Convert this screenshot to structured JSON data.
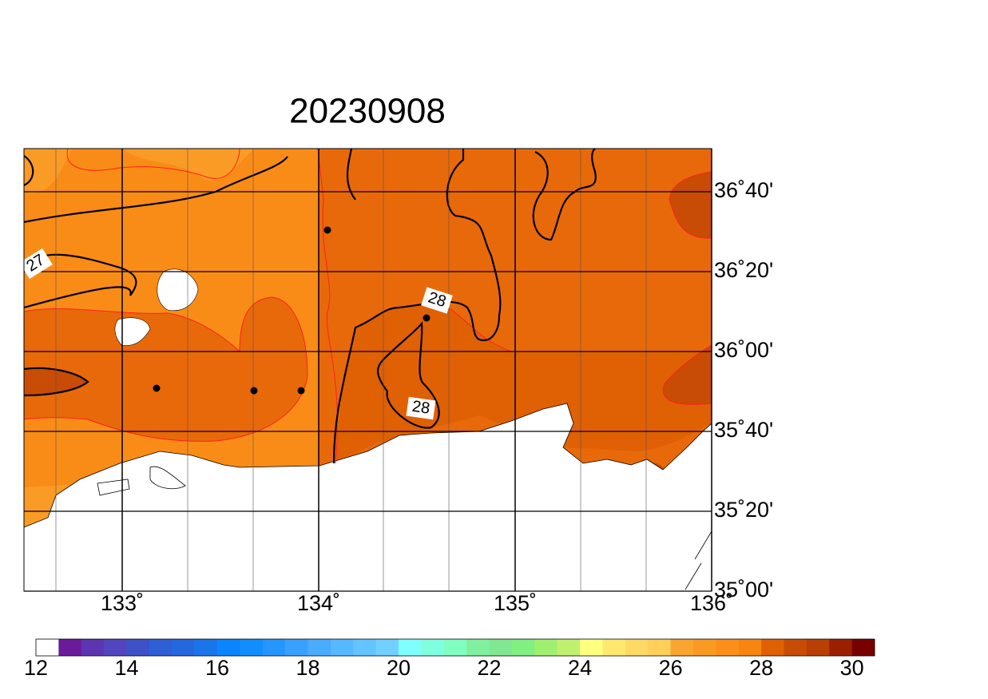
{
  "map": {
    "title": "20230908",
    "lon_range": [
      132.5,
      136
    ],
    "lat_range": [
      35,
      36.8467
    ],
    "lon_ticks": [
      {
        "value": 133,
        "label": "133˚"
      },
      {
        "value": 134,
        "label": "134˚"
      },
      {
        "value": 135,
        "label": "135˚"
      },
      {
        "value": 136,
        "label": "136˚"
      }
    ],
    "lat_ticks": [
      {
        "value": 36.6667,
        "label": "36˚40'"
      },
      {
        "value": 36.3333,
        "label": "36˚20'"
      },
      {
        "value": 36,
        "label": "36˚00'"
      },
      {
        "value": 35.6667,
        "label": "35˚40'"
      },
      {
        "value": 35.3333,
        "label": "35˚20'"
      },
      {
        "value": 35,
        "label": "35˚00'"
      }
    ],
    "contour_labels": [
      "27",
      "28",
      "28"
    ],
    "colorbar": {
      "range": [
        12,
        30.5
      ],
      "ticks": [
        12,
        14,
        16,
        18,
        20,
        22,
        24,
        26,
        28,
        30
      ],
      "colors": [
        "#ffffff",
        "#6a1b9a",
        "#5e35b1",
        "#5145c0",
        "#3f51c8",
        "#2f5fd6",
        "#2468e0",
        "#1a75ea",
        "#0a84ff",
        "#118dff",
        "#2596ff",
        "#3aa0ff",
        "#4aacff",
        "#56b8ff",
        "#63c4ff",
        "#70d0ff",
        "#80ffff",
        "#80ffe0",
        "#80ffc0",
        "#80f0a0",
        "#80e890",
        "#80f080",
        "#a0f070",
        "#c0f070",
        "#ffff80",
        "#ffe870",
        "#ffd866",
        "#ffcf5a",
        "#f9a530",
        "#fa9a25",
        "#fb8f1a",
        "#f7850f",
        "#e06004",
        "#c84c05",
        "#b84004",
        "#9a2000",
        "#780000"
      ]
    }
  }
}
